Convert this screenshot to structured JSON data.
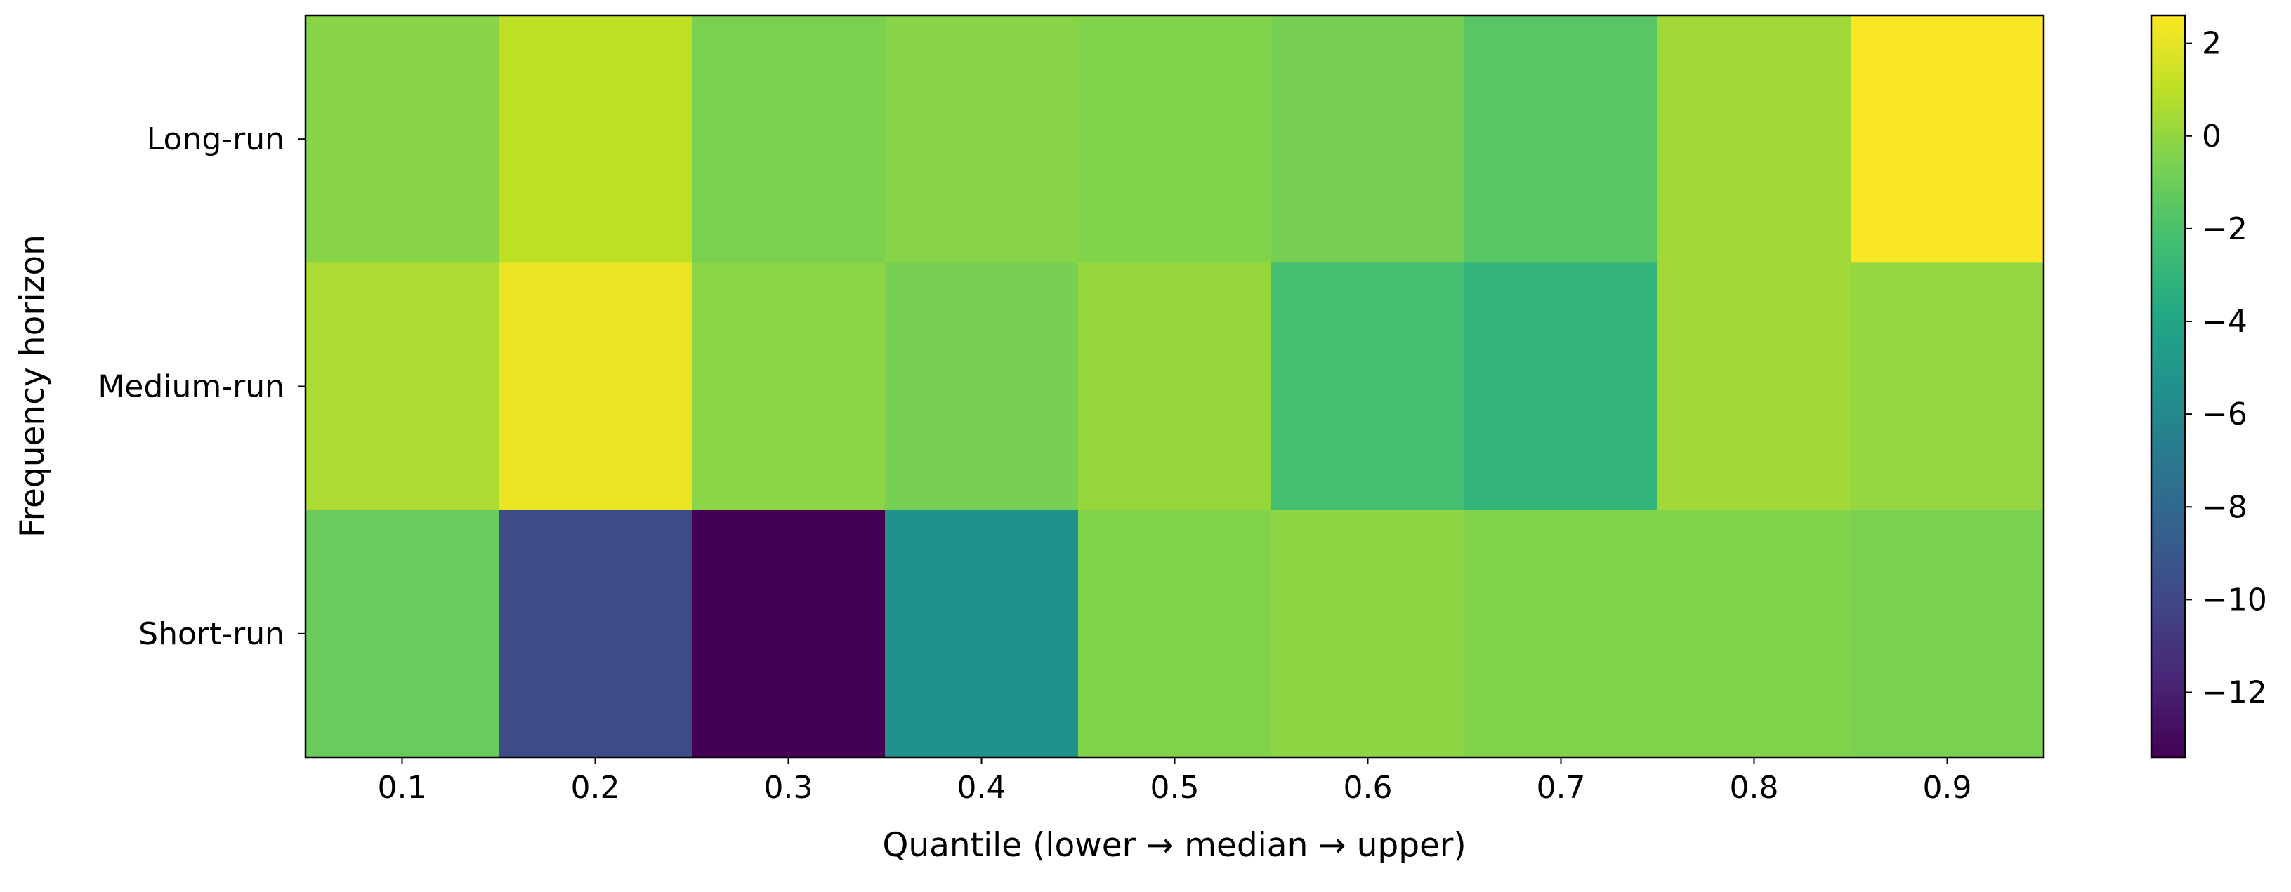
{
  "chart_data": {
    "type": "heatmap",
    "title": "",
    "xlabel": "Quantile (lower → median → upper)",
    "ylabel": "Frequency horizon",
    "x_categories": [
      "0.1",
      "0.2",
      "0.3",
      "0.4",
      "0.5",
      "0.6",
      "0.7",
      "0.8",
      "0.9"
    ],
    "y_categories": [
      "Long-run",
      "Medium-run",
      "Short-run"
    ],
    "values": [
      [
        -0.3,
        1.0,
        -0.6,
        -0.3,
        -0.4,
        -0.7,
        -1.6,
        0.3,
        2.5
      ],
      [
        0.6,
        2.1,
        -0.2,
        -0.7,
        0.1,
        -2.2,
        -3.0,
        0.3,
        0.0
      ],
      [
        -1.1,
        -9.7,
        -13.4,
        -5.4,
        -0.4,
        -0.1,
        -0.4,
        -0.4,
        -0.6
      ]
    ],
    "colormap": "viridis",
    "colorbar": {
      "vmin": -13.4,
      "vmax": 2.6,
      "ticks": [
        2,
        0,
        -2,
        -4,
        -6,
        -8,
        -10,
        -12
      ],
      "tick_labels": [
        "2",
        "0",
        "−2",
        "−4",
        "−6",
        "−8",
        "−10",
        "−12"
      ]
    }
  }
}
